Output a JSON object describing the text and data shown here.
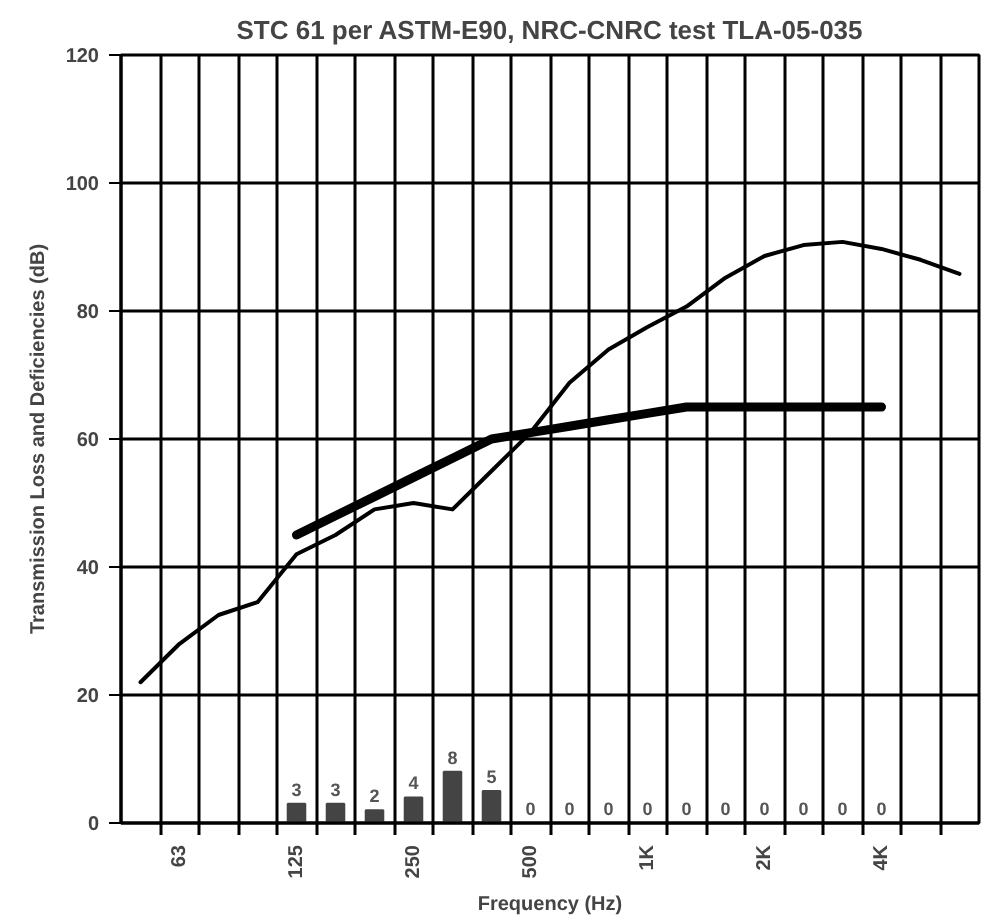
{
  "chart_data": {
    "type": "line",
    "title": "STC 61 per ASTM-E90, NRC-CNRC test TLA-05-035",
    "xlabel": "Frequency (Hz)",
    "ylabel": "Transmission Loss and Deficiencies (dB)",
    "categories": [
      null,
      "63",
      null,
      null,
      "125",
      null,
      null,
      "250",
      null,
      null,
      "500",
      null,
      null,
      "1K",
      null,
      null,
      "2K",
      null,
      null,
      "4K",
      null,
      null
    ],
    "series": [
      {
        "color": "#000000",
        "values": [
          22,
          28,
          32.5,
          34.5,
          42,
          45,
          49,
          50,
          49,
          55,
          61,
          68.8,
          74,
          77.5,
          80.7,
          85.2,
          88.6,
          90.3,
          90.8,
          89.7,
          88,
          85.8
        ]
      },
      {
        "type": "line",
        "color": "#000000",
        "values": [
          null,
          null,
          null,
          null,
          45,
          48,
          51,
          54,
          57,
          60,
          61,
          62,
          63,
          64,
          65,
          65,
          65,
          65,
          65,
          65,
          null,
          null
        ]
      },
      {
        "type": "bar",
        "color": "#444444",
        "data_labels": true,
        "values": [
          null,
          null,
          null,
          null,
          3,
          3,
          2,
          4,
          8,
          5,
          0,
          0,
          0,
          0,
          0,
          0,
          0,
          0,
          0,
          0,
          null,
          null
        ]
      }
    ],
    "ylim": [
      0,
      120
    ],
    "yticks": [
      0,
      20,
      40,
      60,
      80,
      100,
      120
    ],
    "grid": true
  }
}
